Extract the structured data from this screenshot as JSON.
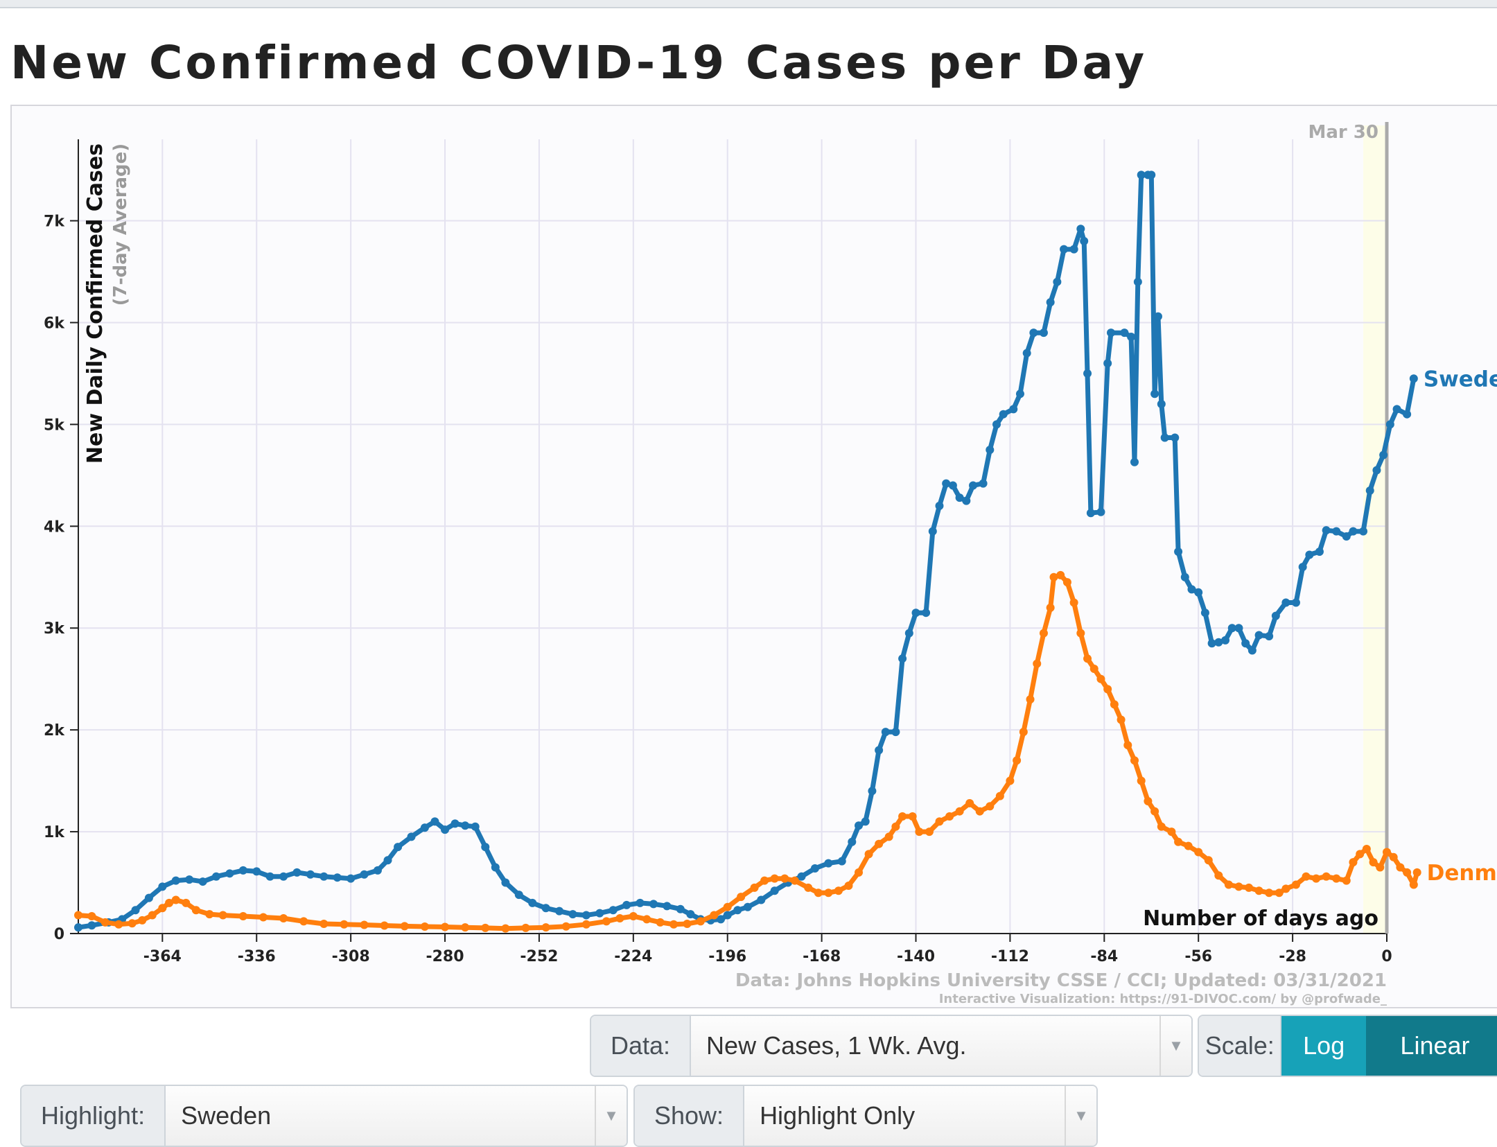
{
  "page": {
    "title": "New Confirmed COVID-19 Cases per Day"
  },
  "controls": {
    "data_label": "Data:",
    "data_value": "New Cases, 1 Wk. Avg.",
    "scale_label": "Scale:",
    "scale_log": "Log",
    "scale_linear": "Linear",
    "highlight_label": "Highlight:",
    "highlight_value": "Sweden",
    "show_label": "Show:",
    "show_value": "Highlight Only",
    "caret_icon": "chevron-down-icon"
  },
  "chart_data": {
    "type": "line",
    "title": "New Confirmed COVID-19 Cases per Day",
    "ylabel": "New Daily Confirmed Cases",
    "ylabel_sub": "(7-day Average)",
    "xlabel": "Number of days ago",
    "x_ticks": [
      -364,
      -336,
      -308,
      -280,
      -252,
      -224,
      -196,
      -168,
      -140,
      -112,
      -84,
      -56,
      -28,
      0
    ],
    "y_ticks": [
      0,
      1000,
      2000,
      3000,
      4000,
      5000,
      6000,
      7000
    ],
    "y_tick_labels": [
      "0",
      "1k",
      "2k",
      "3k",
      "4k",
      "5k",
      "6k",
      "7k"
    ],
    "xlim": [
      -389,
      0
    ],
    "ylim": [
      0,
      7800
    ],
    "date_marker": "Mar 30",
    "source": "Data: Johns Hopkins University CSSE / CCI; Updated: 03/31/2021",
    "credit": "Interactive Visualization: https://91-DIVOC.com/ by @profwade_",
    "series": [
      {
        "name": "Sweden",
        "color": "#1f77b4",
        "points": [
          [
            -389,
            60
          ],
          [
            -385,
            80
          ],
          [
            -380,
            110
          ],
          [
            -376,
            140
          ],
          [
            -372,
            230
          ],
          [
            -368,
            350
          ],
          [
            -364,
            460
          ],
          [
            -360,
            520
          ],
          [
            -356,
            530
          ],
          [
            -352,
            510
          ],
          [
            -348,
            560
          ],
          [
            -344,
            590
          ],
          [
            -340,
            620
          ],
          [
            -336,
            610
          ],
          [
            -332,
            560
          ],
          [
            -328,
            560
          ],
          [
            -324,
            600
          ],
          [
            -320,
            580
          ],
          [
            -316,
            560
          ],
          [
            -312,
            550
          ],
          [
            -308,
            540
          ],
          [
            -304,
            580
          ],
          [
            -300,
            620
          ],
          [
            -297,
            720
          ],
          [
            -294,
            850
          ],
          [
            -290,
            950
          ],
          [
            -286,
            1040
          ],
          [
            -283,
            1100
          ],
          [
            -280,
            1020
          ],
          [
            -277,
            1080
          ],
          [
            -274,
            1060
          ],
          [
            -271,
            1050
          ],
          [
            -268,
            850
          ],
          [
            -265,
            650
          ],
          [
            -262,
            500
          ],
          [
            -258,
            380
          ],
          [
            -254,
            300
          ],
          [
            -250,
            250
          ],
          [
            -246,
            220
          ],
          [
            -242,
            190
          ],
          [
            -238,
            180
          ],
          [
            -234,
            200
          ],
          [
            -230,
            230
          ],
          [
            -226,
            280
          ],
          [
            -222,
            300
          ],
          [
            -218,
            290
          ],
          [
            -214,
            270
          ],
          [
            -210,
            240
          ],
          [
            -207,
            190
          ],
          [
            -204,
            140
          ],
          [
            -201,
            130
          ],
          [
            -198,
            140
          ],
          [
            -196,
            180
          ],
          [
            -193,
            230
          ],
          [
            -190,
            260
          ],
          [
            -186,
            330
          ],
          [
            -182,
            420
          ],
          [
            -178,
            500
          ],
          [
            -174,
            560
          ],
          [
            -170,
            640
          ],
          [
            -166,
            690
          ],
          [
            -162,
            710
          ],
          [
            -159,
            900
          ],
          [
            -157,
            1060
          ],
          [
            -155,
            1100
          ],
          [
            -153,
            1400
          ],
          [
            -151,
            1800
          ],
          [
            -149,
            1980
          ],
          [
            -146,
            1980
          ],
          [
            -144,
            2700
          ],
          [
            -142,
            2950
          ],
          [
            -140,
            3150
          ],
          [
            -137,
            3150
          ],
          [
            -135,
            3950
          ],
          [
            -133,
            4200
          ],
          [
            -131,
            4420
          ],
          [
            -129,
            4400
          ],
          [
            -127,
            4280
          ],
          [
            -125,
            4250
          ],
          [
            -123,
            4400
          ],
          [
            -120,
            4420
          ],
          [
            -118,
            4750
          ],
          [
            -116,
            5000
          ],
          [
            -114,
            5100
          ],
          [
            -111,
            5150
          ],
          [
            -109,
            5300
          ],
          [
            -107,
            5700
          ],
          [
            -105,
            5900
          ],
          [
            -102,
            5900
          ],
          [
            -100,
            6200
          ],
          [
            -98,
            6400
          ],
          [
            -96,
            6720
          ],
          [
            -93,
            6720
          ],
          [
            -91,
            6920
          ],
          [
            -90,
            6800
          ],
          [
            -89,
            5500
          ],
          [
            -88,
            4130
          ],
          [
            -85,
            4140
          ],
          [
            -83,
            5600
          ],
          [
            -82,
            5900
          ],
          [
            -78,
            5900
          ],
          [
            -76,
            5860
          ],
          [
            -75,
            4630
          ],
          [
            -74,
            6400
          ],
          [
            -73,
            7450
          ],
          [
            -71,
            7450
          ],
          [
            -70,
            7450
          ],
          [
            -69,
            5300
          ],
          [
            -68,
            6060
          ],
          [
            -67,
            5200
          ],
          [
            -66,
            4870
          ],
          [
            -63,
            4870
          ],
          [
            -62,
            3750
          ],
          [
            -60,
            3500
          ],
          [
            -58,
            3380
          ],
          [
            -56,
            3350
          ],
          [
            -54,
            3150
          ],
          [
            -52,
            2850
          ],
          [
            -50,
            2860
          ],
          [
            -48,
            2880
          ],
          [
            -46,
            3000
          ],
          [
            -44,
            3000
          ],
          [
            -42,
            2850
          ],
          [
            -40,
            2780
          ],
          [
            -38,
            2930
          ],
          [
            -35,
            2920
          ],
          [
            -33,
            3120
          ],
          [
            -30,
            3250
          ],
          [
            -27,
            3250
          ],
          [
            -25,
            3600
          ],
          [
            -23,
            3720
          ],
          [
            -20,
            3750
          ],
          [
            -18,
            3960
          ],
          [
            -15,
            3950
          ],
          [
            -12,
            3900
          ],
          [
            -10,
            3950
          ],
          [
            -7,
            3950
          ],
          [
            -5,
            4350
          ],
          [
            -3,
            4550
          ],
          [
            -1,
            4700
          ],
          [
            1,
            5000
          ],
          [
            3,
            5150
          ],
          [
            6,
            5100
          ],
          [
            8,
            5450
          ]
        ]
      },
      {
        "name": "Denmark",
        "color": "#ff7f0e",
        "points": [
          [
            -389,
            180
          ],
          [
            -385,
            170
          ],
          [
            -381,
            110
          ],
          [
            -377,
            90
          ],
          [
            -373,
            100
          ],
          [
            -370,
            130
          ],
          [
            -367,
            180
          ],
          [
            -364,
            250
          ],
          [
            -362,
            300
          ],
          [
            -360,
            330
          ],
          [
            -357,
            300
          ],
          [
            -354,
            230
          ],
          [
            -350,
            190
          ],
          [
            -346,
            180
          ],
          [
            -340,
            170
          ],
          [
            -334,
            160
          ],
          [
            -328,
            150
          ],
          [
            -322,
            120
          ],
          [
            -316,
            95
          ],
          [
            -310,
            90
          ],
          [
            -304,
            85
          ],
          [
            -298,
            78
          ],
          [
            -292,
            72
          ],
          [
            -286,
            68
          ],
          [
            -280,
            65
          ],
          [
            -274,
            60
          ],
          [
            -268,
            55
          ],
          [
            -262,
            50
          ],
          [
            -256,
            55
          ],
          [
            -250,
            60
          ],
          [
            -244,
            70
          ],
          [
            -238,
            90
          ],
          [
            -232,
            120
          ],
          [
            -228,
            150
          ],
          [
            -224,
            170
          ],
          [
            -220,
            140
          ],
          [
            -216,
            110
          ],
          [
            -212,
            90
          ],
          [
            -208,
            95
          ],
          [
            -204,
            120
          ],
          [
            -200,
            180
          ],
          [
            -196,
            260
          ],
          [
            -192,
            360
          ],
          [
            -188,
            450
          ],
          [
            -185,
            520
          ],
          [
            -182,
            540
          ],
          [
            -179,
            540
          ],
          [
            -176,
            520
          ],
          [
            -172,
            450
          ],
          [
            -169,
            400
          ],
          [
            -166,
            400
          ],
          [
            -163,
            420
          ],
          [
            -160,
            470
          ],
          [
            -157,
            600
          ],
          [
            -154,
            780
          ],
          [
            -151,
            880
          ],
          [
            -148,
            950
          ],
          [
            -146,
            1050
          ],
          [
            -144,
            1150
          ],
          [
            -141,
            1150
          ],
          [
            -139,
            1000
          ],
          [
            -136,
            1000
          ],
          [
            -133,
            1100
          ],
          [
            -130,
            1150
          ],
          [
            -127,
            1200
          ],
          [
            -124,
            1280
          ],
          [
            -121,
            1200
          ],
          [
            -118,
            1250
          ],
          [
            -115,
            1350
          ],
          [
            -112,
            1500
          ],
          [
            -110,
            1700
          ],
          [
            -108,
            1980
          ],
          [
            -106,
            2300
          ],
          [
            -104,
            2650
          ],
          [
            -102,
            2950
          ],
          [
            -100,
            3200
          ],
          [
            -99,
            3500
          ],
          [
            -97,
            3520
          ],
          [
            -95,
            3450
          ],
          [
            -93,
            3250
          ],
          [
            -91,
            2950
          ],
          [
            -89,
            2700
          ],
          [
            -87,
            2600
          ],
          [
            -85,
            2500
          ],
          [
            -83,
            2400
          ],
          [
            -81,
            2250
          ],
          [
            -79,
            2100
          ],
          [
            -77,
            1850
          ],
          [
            -75,
            1700
          ],
          [
            -73,
            1500
          ],
          [
            -71,
            1300
          ],
          [
            -69,
            1200
          ],
          [
            -67,
            1050
          ],
          [
            -64,
            1000
          ],
          [
            -62,
            900
          ],
          [
            -59,
            860
          ],
          [
            -56,
            800
          ],
          [
            -53,
            720
          ],
          [
            -50,
            570
          ],
          [
            -47,
            480
          ],
          [
            -44,
            460
          ],
          [
            -41,
            450
          ],
          [
            -38,
            420
          ],
          [
            -35,
            400
          ],
          [
            -32,
            400
          ],
          [
            -30,
            440
          ],
          [
            -27,
            480
          ],
          [
            -24,
            560
          ],
          [
            -21,
            540
          ],
          [
            -18,
            560
          ],
          [
            -15,
            540
          ],
          [
            -12,
            520
          ],
          [
            -10,
            700
          ],
          [
            -8,
            780
          ],
          [
            -6,
            830
          ],
          [
            -4,
            700
          ],
          [
            -2,
            650
          ],
          [
            0,
            800
          ],
          [
            2,
            750
          ],
          [
            4,
            650
          ],
          [
            6,
            600
          ],
          [
            8,
            480
          ],
          [
            9,
            600
          ]
        ]
      }
    ]
  }
}
